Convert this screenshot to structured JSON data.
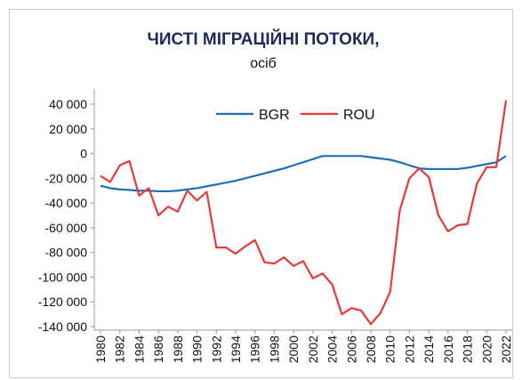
{
  "chart_data": {
    "type": "line",
    "title": "ЧИСТІ МІГРАЦІЙНІ ПОТОКИ,",
    "subtitle": "осіб",
    "x": [
      1980,
      1981,
      1982,
      1983,
      1984,
      1985,
      1986,
      1987,
      1988,
      1989,
      1990,
      1991,
      1992,
      1993,
      1994,
      1995,
      1996,
      1997,
      1998,
      1999,
      2000,
      2001,
      2002,
      2003,
      2004,
      2005,
      2006,
      2007,
      2008,
      2009,
      2010,
      2011,
      2012,
      2013,
      2014,
      2015,
      2016,
      2017,
      2018,
      2019,
      2020,
      2021,
      2022
    ],
    "series": [
      {
        "name": "BGR",
        "color": "#1f6fb4",
        "values": [
          -26000,
          -28000,
          -29000,
          -29500,
          -30000,
          -30000,
          -30500,
          -30500,
          -30000,
          -29000,
          -28000,
          -26500,
          -25000,
          -23500,
          -22000,
          -20000,
          -18000,
          -16000,
          -14000,
          -12000,
          -9500,
          -7000,
          -4500,
          -2000,
          -2000,
          -2000,
          -2000,
          -2000,
          -3000,
          -4000,
          -5000,
          -7000,
          -9500,
          -12000,
          -12500,
          -12500,
          -12500,
          -12500,
          -11500,
          -10000,
          -8500,
          -7000,
          -2000
        ]
      },
      {
        "name": "ROU",
        "color": "#e8393a",
        "values": [
          -18000,
          -23000,
          -9500,
          -6000,
          -34000,
          -28000,
          -50000,
          -43000,
          -47000,
          -30000,
          -38000,
          -31000,
          -76000,
          -76000,
          -81000,
          -75000,
          -70000,
          -88000,
          -89000,
          -84000,
          -91000,
          -87000,
          -101000,
          -97000,
          -106000,
          -130000,
          -125000,
          -127000,
          -138000,
          -129000,
          -112000,
          -46000,
          -20000,
          -12000,
          -19000,
          -50000,
          -63000,
          -58000,
          -57000,
          -24000,
          -11000,
          -11000,
          43000
        ]
      }
    ],
    "xlim": [
      1980,
      2022
    ],
    "xticks": [
      1980,
      1982,
      1984,
      1986,
      1988,
      1990,
      1992,
      1994,
      1996,
      1998,
      2000,
      2002,
      2004,
      2006,
      2008,
      2010,
      2012,
      2014,
      2016,
      2018,
      2020,
      2022
    ],
    "ylim": [
      -140000,
      40000
    ],
    "yticks": [
      {
        "value": 40000,
        "label": "40 000"
      },
      {
        "value": 20000,
        "label": "20 000"
      },
      0,
      {
        "value": -20000,
        "label": "-20 000"
      },
      {
        "value": -40000,
        "label": "-40 000"
      },
      {
        "value": -60000,
        "label": "-60 000"
      },
      {
        "value": -80000,
        "label": "-80 000"
      },
      {
        "value": -100000,
        "label": "-100 000"
      },
      {
        "value": -120000,
        "label": "-120 000"
      },
      {
        "value": -140000,
        "label": "-140 000"
      }
    ],
    "legend": "top"
  }
}
